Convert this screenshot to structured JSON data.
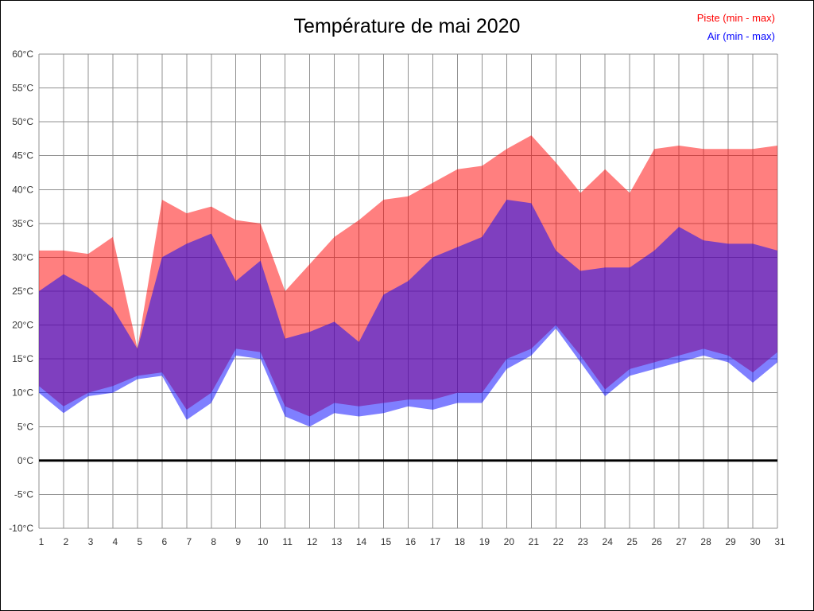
{
  "title": "Température de mai 2020",
  "legend": [
    {
      "label": "Piste (min - max)",
      "color": "#ff0000"
    },
    {
      "label": "Air (min - max)",
      "color": "#0000ff"
    }
  ],
  "chart_data": {
    "type": "area",
    "title": "Température de mai 2020",
    "x": [
      1,
      2,
      3,
      4,
      5,
      6,
      7,
      8,
      9,
      10,
      11,
      12,
      13,
      14,
      15,
      16,
      17,
      18,
      19,
      20,
      21,
      22,
      23,
      24,
      25,
      26,
      27,
      28,
      29,
      30,
      31
    ],
    "xlabel": "",
    "ylabel": "",
    "ylim": [
      -10,
      60
    ],
    "ytick_step": 5,
    "ytick_suffix": "°C",
    "grid": true,
    "grid_color": "#909090",
    "zero_line": true,
    "zero_line_color": "#000000",
    "tick_label_color": "#333333",
    "legend_position": "top-right",
    "series": [
      {
        "id": "piste",
        "name": "Piste (min - max)",
        "fill": "rgba(255,0,0,0.5)",
        "max": [
          31,
          31,
          30.5,
          33,
          16.5,
          38.5,
          36.5,
          37.5,
          35.5,
          35,
          25,
          29,
          33,
          35.5,
          38.5,
          39,
          41,
          43,
          43.5,
          46,
          48,
          44,
          39.5,
          43,
          39.5,
          46,
          46.5,
          46,
          46,
          46,
          46.5
        ],
        "min": [
          11,
          8,
          10,
          11,
          12.5,
          13,
          7.5,
          10,
          16.5,
          16,
          8,
          6.5,
          8.5,
          8,
          8.5,
          9,
          9,
          10,
          10,
          15,
          16.5,
          20,
          15.5,
          10.5,
          13.5,
          14.5,
          15.5,
          16.5,
          15.5,
          13,
          16
        ]
      },
      {
        "id": "air",
        "name": "Air (min - max)",
        "fill": "rgba(0,0,255,0.5)",
        "max": [
          25,
          27.5,
          25.5,
          22.5,
          16.5,
          30,
          32,
          33.5,
          26.5,
          29.5,
          18,
          19,
          20.5,
          17.5,
          24.5,
          26.5,
          30,
          31.5,
          33,
          38.5,
          38,
          31,
          28,
          28.5,
          28.5,
          31,
          34.5,
          32.5,
          32,
          32,
          31
        ],
        "min": [
          10,
          7,
          9.5,
          10,
          12,
          12.5,
          6,
          8.5,
          15.5,
          15,
          6.5,
          5,
          7,
          6.5,
          7,
          8,
          7.5,
          8.5,
          8.5,
          13.5,
          15.5,
          19.5,
          14.5,
          9.5,
          12.5,
          13.5,
          14.5,
          15.5,
          14.5,
          11.5,
          14.5
        ]
      }
    ]
  }
}
